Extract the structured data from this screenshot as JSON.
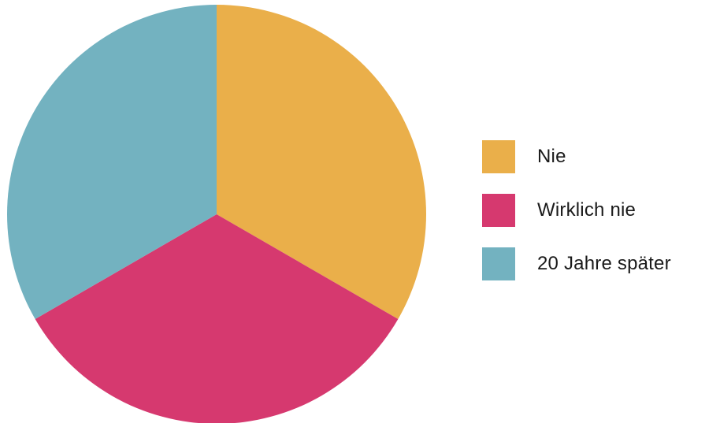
{
  "chart_data": {
    "type": "pie",
    "title": "",
    "categories": [
      "Nie",
      "Wirklich nie",
      "20 Jahre später"
    ],
    "values": [
      33.3,
      33.3,
      33.3
    ],
    "colors": [
      "#EAAF4A",
      "#D6396F",
      "#73B2C0"
    ],
    "start_angle_deg": 0,
    "direction": "clockwise",
    "legend": {
      "placement": "right",
      "items": [
        {
          "label": "Nie",
          "color": "#EAAF4A"
        },
        {
          "label": "Wirklich nie",
          "color": "#D6396F"
        },
        {
          "label": "20 Jahre später",
          "color": "#73B2C0"
        }
      ]
    }
  }
}
